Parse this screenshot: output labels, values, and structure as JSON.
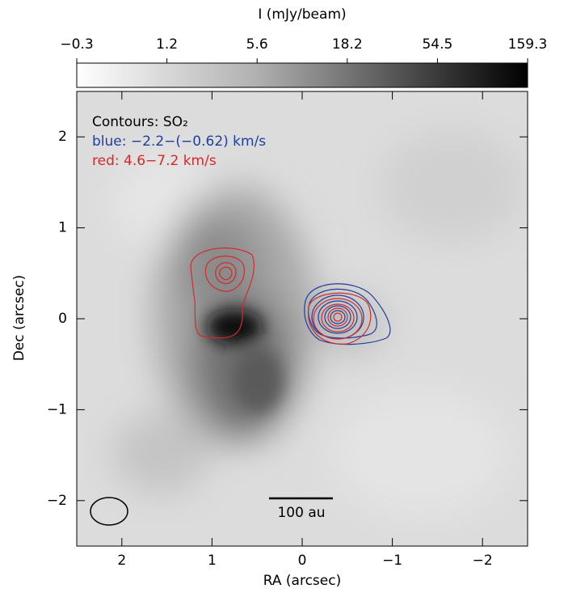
{
  "chart_data": {
    "type": "image",
    "xlabel": "RA (arcsec)",
    "ylabel": "Dec (arcsec)",
    "xlim": [
      2.5,
      -2.5
    ],
    "ylim": [
      -2.5,
      2.5
    ],
    "xticks": [
      2,
      1,
      0,
      {
        "value": -1,
        "label": "−1"
      },
      {
        "value": -2,
        "label": "−2"
      }
    ],
    "yticks": [
      {
        "value": -2,
        "label": "−2"
      },
      {
        "value": -1,
        "label": "−1"
      },
      0,
      1,
      2
    ],
    "colorbar": {
      "label": "I (mJy/beam)",
      "lim": [
        -0.3,
        159.3
      ],
      "ticks": [
        {
          "value": -0.3,
          "label": "−0.3"
        },
        1.2,
        5.6,
        18.2,
        54.5,
        159.3
      ]
    },
    "annotations": [
      {
        "text": "Contours: SO₂",
        "color": "#000000"
      },
      {
        "text": "blue: −2.2−(−0.62) km/s",
        "color": "#1f3f9f"
      },
      {
        "text": "red: 4.6−7.2 km/s",
        "color": "#d42a2a"
      }
    ],
    "scalebar": {
      "label": "100 au"
    }
  }
}
